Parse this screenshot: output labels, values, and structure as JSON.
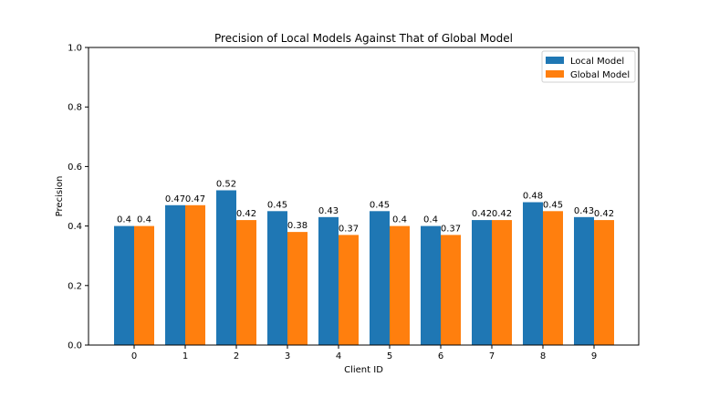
{
  "chart_data": {
    "type": "bar",
    "title": "Precision of Local Models Against That of Global Model",
    "xlabel": "Client ID",
    "ylabel": "Precision",
    "categories": [
      "0",
      "1",
      "2",
      "3",
      "4",
      "5",
      "6",
      "7",
      "8",
      "9"
    ],
    "ylim": [
      0,
      1.0
    ],
    "yticks": [
      "0.0",
      "0.2",
      "0.4",
      "0.6",
      "0.8",
      "1.0"
    ],
    "series": [
      {
        "name": "Local Model",
        "color": "#1f77b4",
        "values": [
          0.4,
          0.47,
          0.52,
          0.45,
          0.43,
          0.45,
          0.4,
          0.42,
          0.48,
          0.43
        ],
        "labels": [
          "0.4",
          "0.47",
          "0.52",
          "0.45",
          "0.43",
          "0.45",
          "0.4",
          "0.42",
          "0.48",
          "0.43"
        ]
      },
      {
        "name": "Global Model",
        "color": "#ff7f0e",
        "values": [
          0.4,
          0.47,
          0.42,
          0.38,
          0.37,
          0.4,
          0.37,
          0.42,
          0.45,
          0.42
        ],
        "labels": [
          "0.4",
          "0.47",
          "0.42",
          "0.38",
          "0.37",
          "0.4",
          "0.37",
          "0.42",
          "0.45",
          "0.42"
        ]
      }
    ],
    "grid": false,
    "legend_position": "top-right"
  }
}
